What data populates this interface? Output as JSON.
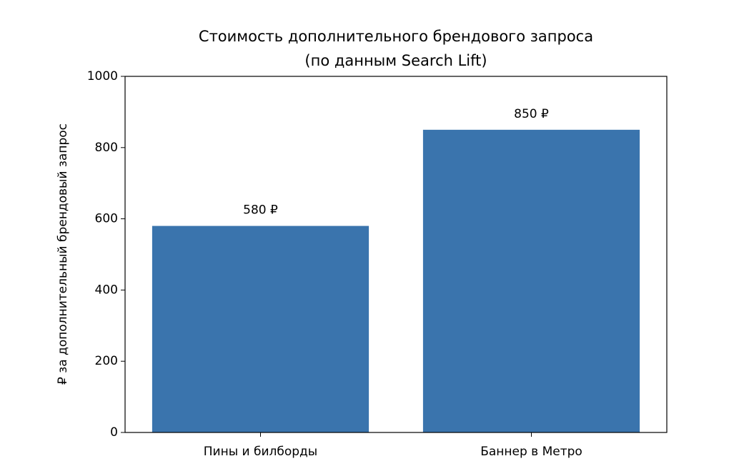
{
  "chart_data": {
    "type": "bar",
    "title": [
      "Стоимость дополнительного брендового запроса",
      "(по данным Search Lift)"
    ],
    "ylabel": "₽ за дополнительный брендовый запрос",
    "categories": [
      "Пины и билборды",
      "Баннер в Метро"
    ],
    "values": [
      580,
      850
    ],
    "value_labels": [
      "580 ₽",
      "850 ₽"
    ],
    "color": "#3a74ad",
    "ylim": [
      0,
      1000
    ],
    "yticks": [
      0,
      200,
      400,
      600,
      800,
      1000
    ]
  }
}
